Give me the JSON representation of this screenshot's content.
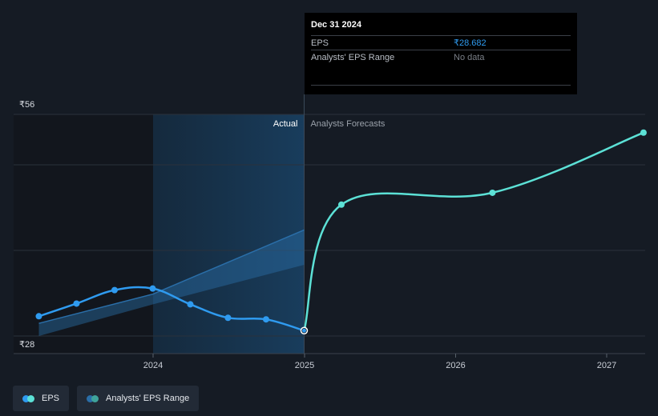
{
  "chart_data": {
    "type": "line",
    "y_axis": {
      "top_label": "₹56",
      "bottom_label": "₹28",
      "range": [
        28,
        56
      ]
    },
    "x_axis": {
      "ticks": [
        "2024",
        "2025",
        "2026",
        "2027"
      ],
      "range": [
        "2023-03-31",
        "2027-03-31"
      ]
    },
    "regions": {
      "actual_label": "Actual",
      "forecast_label": "Analysts Forecasts"
    },
    "series": [
      {
        "name": "EPS",
        "segment": "actual",
        "color": "#2f9bf0",
        "x": [
          "2023-03-31",
          "2023-06-30",
          "2023-09-30",
          "2023-12-31",
          "2024-03-31",
          "2024-06-30",
          "2024-09-30",
          "2024-12-31"
        ],
        "values": [
          30.5,
          32.1,
          33.8,
          34.0,
          32.0,
          30.3,
          30.1,
          28.682
        ]
      },
      {
        "name": "EPS",
        "segment": "forecast",
        "color": "#5ce1d6",
        "x": [
          "2024-12-31",
          "2025-03-31",
          "2026-03-31",
          "2027-03-31"
        ],
        "values": [
          28.682,
          44.6,
          46.1,
          53.7
        ]
      }
    ],
    "analyst_range_band": {
      "x": [
        "2023-03-31",
        "2024-01-01",
        "2024-12-31"
      ],
      "upper": [
        29.6,
        33.3,
        41.4
      ],
      "lower": [
        28.0,
        32.0,
        37.0
      ]
    },
    "highlight_start": "2024-01-01",
    "highlight_end": "2024-12-31"
  },
  "tooltip": {
    "date": "Dec 31 2024",
    "rows": [
      {
        "key": "EPS",
        "value": "₹28.682"
      },
      {
        "key": "Analysts' EPS Range",
        "value": "No data"
      }
    ]
  },
  "legend": [
    {
      "label": "EPS",
      "colors": [
        "#2f9bf0",
        "#5ce1d6"
      ]
    },
    {
      "label": "Analysts' EPS Range",
      "colors": [
        "#2a6ea8",
        "#3fa39b"
      ]
    }
  ]
}
